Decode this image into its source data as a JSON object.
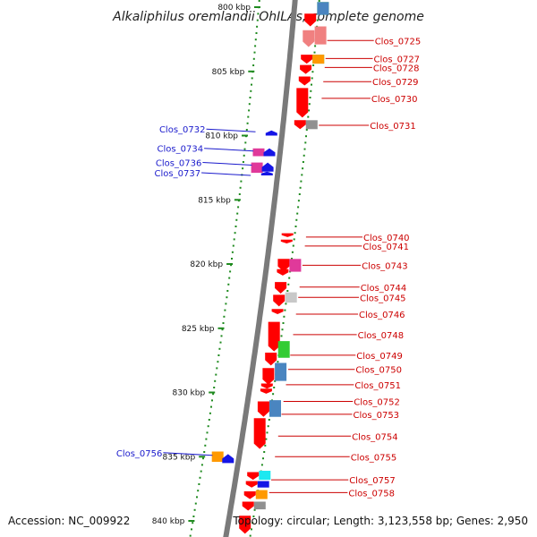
{
  "title": "Alkaliphilus oremlandii OhILAs, complete genome",
  "footer": {
    "accession": "Accession: NC_009922",
    "topology": "Topology: circular; Length: 3,123,558 bp; Genes: 2,950"
  },
  "colors": {
    "backbone": "#7a7a7a",
    "dots": "#1f8a1f",
    "label_right": "#cc0000",
    "label_left": "#1a1acc",
    "gene_default": "#ff0000",
    "gene_pink": "#e0399a",
    "gene_green": "#33cc33",
    "gene_gray": "#909090",
    "gene_orange": "#ff9900",
    "gene_blue": "#1515e6",
    "gene_steel": "#4a85c0",
    "gene_cyan": "#1ce8f0",
    "gene_lightgray": "#c8c8c8",
    "gene_salmon": "#f08080"
  },
  "kbp_ticks": [
    {
      "label": "800 kbp",
      "pos": 800
    },
    {
      "label": "805 kbp",
      "pos": 805
    },
    {
      "label": "810 kbp",
      "pos": 810
    },
    {
      "label": "815 kbp",
      "pos": 815
    },
    {
      "label": "820 kbp",
      "pos": 820
    },
    {
      "label": "825 kbp",
      "pos": 825
    },
    {
      "label": "830 kbp",
      "pos": 830
    },
    {
      "label": "835 kbp",
      "pos": 835
    },
    {
      "label": "840 kbp",
      "pos": 840
    }
  ],
  "labels_right": [
    {
      "text": "Clos_0725",
      "pos": 802.6
    },
    {
      "text": "Clos_0727",
      "pos": 804.0
    },
    {
      "text": "Clos_0728",
      "pos": 804.7
    },
    {
      "text": "Clos_0729",
      "pos": 805.8
    },
    {
      "text": "Clos_0730",
      "pos": 807.1
    },
    {
      "text": "Clos_0731",
      "pos": 809.2
    },
    {
      "text": "Clos_0740",
      "pos": 817.9
    },
    {
      "text": "Clos_0741",
      "pos": 818.6
    },
    {
      "text": "Clos_0743",
      "pos": 820.1
    },
    {
      "text": "Clos_0744",
      "pos": 821.8
    },
    {
      "text": "Clos_0745",
      "pos": 822.6
    },
    {
      "text": "Clos_0746",
      "pos": 823.9
    },
    {
      "text": "Clos_0748",
      "pos": 825.5
    },
    {
      "text": "Clos_0749",
      "pos": 827.1
    },
    {
      "text": "Clos_0750",
      "pos": 828.2
    },
    {
      "text": "Clos_0751",
      "pos": 829.4
    },
    {
      "text": "Clos_0752",
      "pos": 830.7
    },
    {
      "text": "Clos_0753",
      "pos": 831.7
    },
    {
      "text": "Clos_0754",
      "pos": 833.4
    },
    {
      "text": "Clos_0755",
      "pos": 835.0
    },
    {
      "text": "Clos_0757",
      "pos": 836.8
    },
    {
      "text": "Clos_0758",
      "pos": 837.8
    }
  ],
  "labels_left": [
    {
      "text": "Clos_0732",
      "pos": 809.7
    },
    {
      "text": "Clos_0734",
      "pos": 811.2
    },
    {
      "text": "Clos_0736",
      "pos": 812.3
    },
    {
      "text": "Clos_0737",
      "pos": 813.1
    },
    {
      "text": "Clos_0756",
      "pos": 834.9
    }
  ],
  "genes": [
    {
      "strand": "+",
      "start": 799.6,
      "end": 800.6,
      "color": "gene_green"
    },
    {
      "strand": "+",
      "start": 799.6,
      "end": 800.6,
      "color": "gene_steel"
    },
    {
      "strand": "-",
      "start": 800.5,
      "end": 801.5,
      "color": "gene_default"
    },
    {
      "strand": "+",
      "start": 801.5,
      "end": 802.9,
      "color": "gene_salmon"
    },
    {
      "strand": "-",
      "start": 801.8,
      "end": 803.1,
      "color": "gene_salmon"
    },
    {
      "strand": "-",
      "start": 803.7,
      "end": 804.4,
      "color": "gene_default"
    },
    {
      "strand": "+",
      "start": 803.7,
      "end": 804.4,
      "color": "gene_green"
    },
    {
      "strand": "+",
      "start": 803.7,
      "end": 804.4,
      "color": "gene_orange"
    },
    {
      "strand": "-",
      "start": 804.5,
      "end": 805.2,
      "color": "gene_default"
    },
    {
      "strand": "-",
      "start": 805.4,
      "end": 806.1,
      "color": "gene_default"
    },
    {
      "strand": "-",
      "start": 806.3,
      "end": 808.6,
      "color": "gene_default"
    },
    {
      "strand": "-",
      "start": 808.8,
      "end": 809.5,
      "color": "gene_default"
    },
    {
      "strand": "+",
      "start": 808.8,
      "end": 809.5,
      "color": "gene_gray"
    },
    {
      "strand": "L",
      "start": 809.6,
      "end": 810.0,
      "color": "gene_blue"
    },
    {
      "strand": "L2",
      "start": 811.0,
      "end": 811.6,
      "color": "gene_pink"
    },
    {
      "strand": "L",
      "start": 811.0,
      "end": 811.6,
      "color": "gene_blue"
    },
    {
      "strand": "L2",
      "start": 812.1,
      "end": 812.9,
      "color": "gene_pink"
    },
    {
      "strand": "L",
      "start": 812.1,
      "end": 812.8,
      "color": "gene_blue"
    },
    {
      "strand": "L",
      "start": 812.8,
      "end": 813.1,
      "color": "gene_blue"
    },
    {
      "strand": "-",
      "start": 817.6,
      "end": 817.9,
      "color": "gene_default"
    },
    {
      "strand": "-",
      "start": 818.1,
      "end": 818.4,
      "color": "gene_default"
    },
    {
      "strand": "-",
      "start": 819.6,
      "end": 820.6,
      "color": "gene_default"
    },
    {
      "strand": "+",
      "start": 819.6,
      "end": 820.6,
      "color": "gene_pink"
    },
    {
      "strand": "-",
      "start": 820.4,
      "end": 820.9,
      "color": "gene_default"
    },
    {
      "strand": "-",
      "start": 821.4,
      "end": 822.3,
      "color": "gene_default"
    },
    {
      "strand": "+",
      "start": 822.2,
      "end": 823.0,
      "color": "gene_lightgray"
    },
    {
      "strand": "-",
      "start": 822.4,
      "end": 823.3,
      "color": "gene_default"
    },
    {
      "strand": "-",
      "start": 823.5,
      "end": 823.9,
      "color": "gene_default"
    },
    {
      "strand": "-",
      "start": 824.5,
      "end": 826.8,
      "color": "gene_default"
    },
    {
      "strand": "+",
      "start": 826.0,
      "end": 827.3,
      "color": "gene_green"
    },
    {
      "strand": "-",
      "start": 826.9,
      "end": 827.9,
      "color": "gene_default"
    },
    {
      "strand": "+",
      "start": 827.7,
      "end": 829.1,
      "color": "gene_steel"
    },
    {
      "strand": "-",
      "start": 828.1,
      "end": 829.4,
      "color": "gene_default"
    },
    {
      "strand": "-",
      "start": 829.3,
      "end": 829.7,
      "color": "gene_default"
    },
    {
      "strand": "-",
      "start": 829.7,
      "end": 830.1,
      "color": "gene_default"
    },
    {
      "strand": "+",
      "start": 830.6,
      "end": 831.9,
      "color": "gene_steel"
    },
    {
      "strand": "-",
      "start": 830.7,
      "end": 831.9,
      "color": "gene_default"
    },
    {
      "strand": "-",
      "start": 832.0,
      "end": 834.4,
      "color": "gene_default"
    },
    {
      "strand": "L2",
      "start": 834.6,
      "end": 835.4,
      "color": "gene_orange"
    },
    {
      "strand": "L",
      "start": 834.8,
      "end": 835.5,
      "color": "gene_blue"
    },
    {
      "strand": "+",
      "start": 836.1,
      "end": 836.8,
      "color": "gene_cyan"
    },
    {
      "strand": "-",
      "start": 836.2,
      "end": 836.8,
      "color": "gene_default"
    },
    {
      "strand": "+",
      "start": 836.9,
      "end": 837.4,
      "color": "gene_blue"
    },
    {
      "strand": "-",
      "start": 836.9,
      "end": 837.4,
      "color": "gene_default"
    },
    {
      "strand": "+",
      "start": 837.6,
      "end": 838.3,
      "color": "gene_orange"
    },
    {
      "strand": "-",
      "start": 837.7,
      "end": 838.3,
      "color": "gene_default"
    },
    {
      "strand": "+",
      "start": 838.5,
      "end": 839.1,
      "color": "gene_gray"
    },
    {
      "strand": "-",
      "start": 838.5,
      "end": 839.2,
      "color": "gene_default"
    },
    {
      "strand": "-",
      "start": 839.6,
      "end": 841.0,
      "color": "gene_default"
    }
  ]
}
